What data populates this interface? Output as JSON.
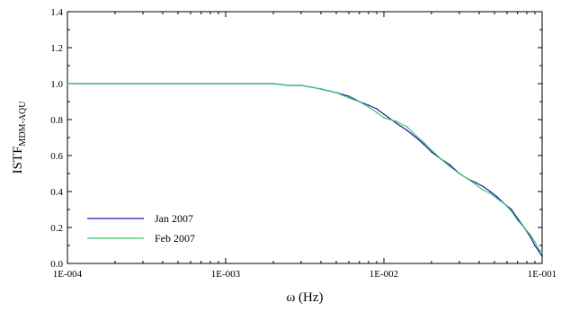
{
  "chart_data": {
    "type": "line",
    "xlabel": "ω (Hz)",
    "ylabel_main": "ISTF",
    "ylabel_sub": "MDM-AQU",
    "x_scale": "log",
    "xlim": [
      0.0001,
      0.1
    ],
    "ylim": [
      0,
      1.4
    ],
    "x_ticks": [
      {
        "value": 0.0001,
        "label": "1E-004"
      },
      {
        "value": 0.001,
        "label": "1E-003"
      },
      {
        "value": 0.01,
        "label": "1E-002"
      },
      {
        "value": 0.1,
        "label": "1E-001"
      }
    ],
    "y_ticks": [
      {
        "value": 0.0,
        "label": "0.0"
      },
      {
        "value": 0.2,
        "label": "0.2"
      },
      {
        "value": 0.4,
        "label": "0.4"
      },
      {
        "value": 0.6,
        "label": "0.6"
      },
      {
        "value": 0.8,
        "label": "0.8"
      },
      {
        "value": 1.0,
        "label": "1.0"
      },
      {
        "value": 1.2,
        "label": "1.2"
      },
      {
        "value": 1.4,
        "label": "1.4"
      }
    ],
    "grid": false,
    "legend_position": "bottom-left",
    "series": [
      {
        "name": "Jan  2007",
        "color": "#1a1aa6",
        "x": [
          0.0001,
          0.0003,
          0.0007,
          0.001,
          0.0015,
          0.002,
          0.0025,
          0.003,
          0.0035,
          0.004,
          0.005,
          0.006,
          0.007,
          0.008,
          0.009,
          0.01,
          0.012,
          0.014,
          0.016,
          0.018,
          0.02,
          0.023,
          0.026,
          0.03,
          0.034,
          0.038,
          0.042,
          0.047,
          0.052,
          0.058,
          0.064,
          0.07,
          0.077,
          0.084,
          0.09,
          0.095,
          0.1
        ],
        "y": [
          1.0,
          1.0,
          1.0,
          1.0,
          1.0,
          1.0,
          0.99,
          0.99,
          0.98,
          0.97,
          0.95,
          0.93,
          0.9,
          0.88,
          0.86,
          0.83,
          0.78,
          0.74,
          0.7,
          0.66,
          0.62,
          0.58,
          0.55,
          0.5,
          0.47,
          0.45,
          0.43,
          0.4,
          0.37,
          0.33,
          0.3,
          0.25,
          0.2,
          0.15,
          0.1,
          0.07,
          0.04
        ]
      },
      {
        "name": "Feb 2007",
        "color": "#3cc46e",
        "x": [
          0.0001,
          0.0003,
          0.0007,
          0.001,
          0.0015,
          0.002,
          0.0025,
          0.003,
          0.0035,
          0.004,
          0.005,
          0.006,
          0.007,
          0.008,
          0.009,
          0.01,
          0.012,
          0.014,
          0.016,
          0.018,
          0.02,
          0.023,
          0.026,
          0.03,
          0.034,
          0.038,
          0.042,
          0.047,
          0.052,
          0.058,
          0.064,
          0.07,
          0.077,
          0.084,
          0.09,
          0.095,
          0.1
        ],
        "y": [
          1.0,
          1.0,
          1.0,
          1.0,
          1.0,
          1.0,
          0.99,
          0.99,
          0.98,
          0.97,
          0.95,
          0.92,
          0.9,
          0.87,
          0.84,
          0.81,
          0.79,
          0.76,
          0.71,
          0.67,
          0.63,
          0.58,
          0.54,
          0.5,
          0.47,
          0.44,
          0.41,
          0.39,
          0.36,
          0.33,
          0.29,
          0.24,
          0.2,
          0.16,
          0.12,
          0.08,
          0.06
        ]
      }
    ]
  }
}
